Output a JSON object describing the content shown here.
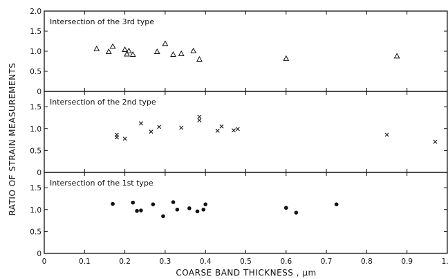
{
  "chart_data": {
    "type": "scatter",
    "xlabel": "COARSE BAND THICKNESS ,  μm",
    "ylabel": "RATIO OF STRAIN MEASUREMENTS",
    "xlim": [
      0,
      1.0
    ],
    "x_ticks": [
      "0",
      "0.1",
      "0.2",
      "0.3",
      "0.4",
      "0.5",
      "0.6",
      "0.7",
      "0.8",
      "0.9",
      "1.0"
    ],
    "grid": false,
    "panels": [
      {
        "title": "Intersection of the 3rd type",
        "marker": "triangle",
        "ylim": [
          0,
          2.0
        ],
        "y_ticks": [
          "2.0",
          "1.5",
          "1.0",
          "0.5",
          "0"
        ],
        "x": [
          0.13,
          0.16,
          0.17,
          0.2,
          0.21,
          0.205,
          0.22,
          0.28,
          0.3,
          0.32,
          0.34,
          0.37,
          0.385,
          0.6,
          0.875
        ],
        "y": [
          1.06,
          0.99,
          1.12,
          1.04,
          1.01,
          0.93,
          0.92,
          0.99,
          1.19,
          0.92,
          0.94,
          1.01,
          0.8,
          0.82,
          0.88
        ]
      },
      {
        "title": "Intersection of the 2nd type",
        "marker": "x",
        "ylim": [
          0,
          1.85
        ],
        "y_ticks": [
          "1.5",
          "1.0",
          "0.5",
          "0"
        ],
        "x": [
          0.18,
          0.18,
          0.2,
          0.24,
          0.265,
          0.285,
          0.34,
          0.385,
          0.385,
          0.43,
          0.44,
          0.47,
          0.48,
          0.85,
          0.97
        ],
        "y": [
          0.86,
          0.8,
          0.77,
          1.12,
          0.93,
          1.04,
          1.02,
          1.27,
          1.19,
          0.95,
          1.05,
          0.96,
          0.99,
          0.86,
          0.7
        ]
      },
      {
        "title": "Intersection of the 1st type",
        "marker": "dot",
        "ylim": [
          0,
          1.85
        ],
        "y_ticks": [
          "1.5",
          "1.0",
          "0.5",
          "0"
        ],
        "x": [
          0.17,
          0.22,
          0.23,
          0.24,
          0.27,
          0.295,
          0.32,
          0.33,
          0.36,
          0.38,
          0.395,
          0.4,
          0.6,
          0.625,
          0.725
        ],
        "y": [
          1.13,
          1.16,
          0.97,
          0.98,
          1.12,
          0.85,
          1.17,
          1.0,
          1.03,
          0.96,
          1.0,
          1.12,
          1.04,
          0.93,
          1.12
        ]
      }
    ]
  }
}
